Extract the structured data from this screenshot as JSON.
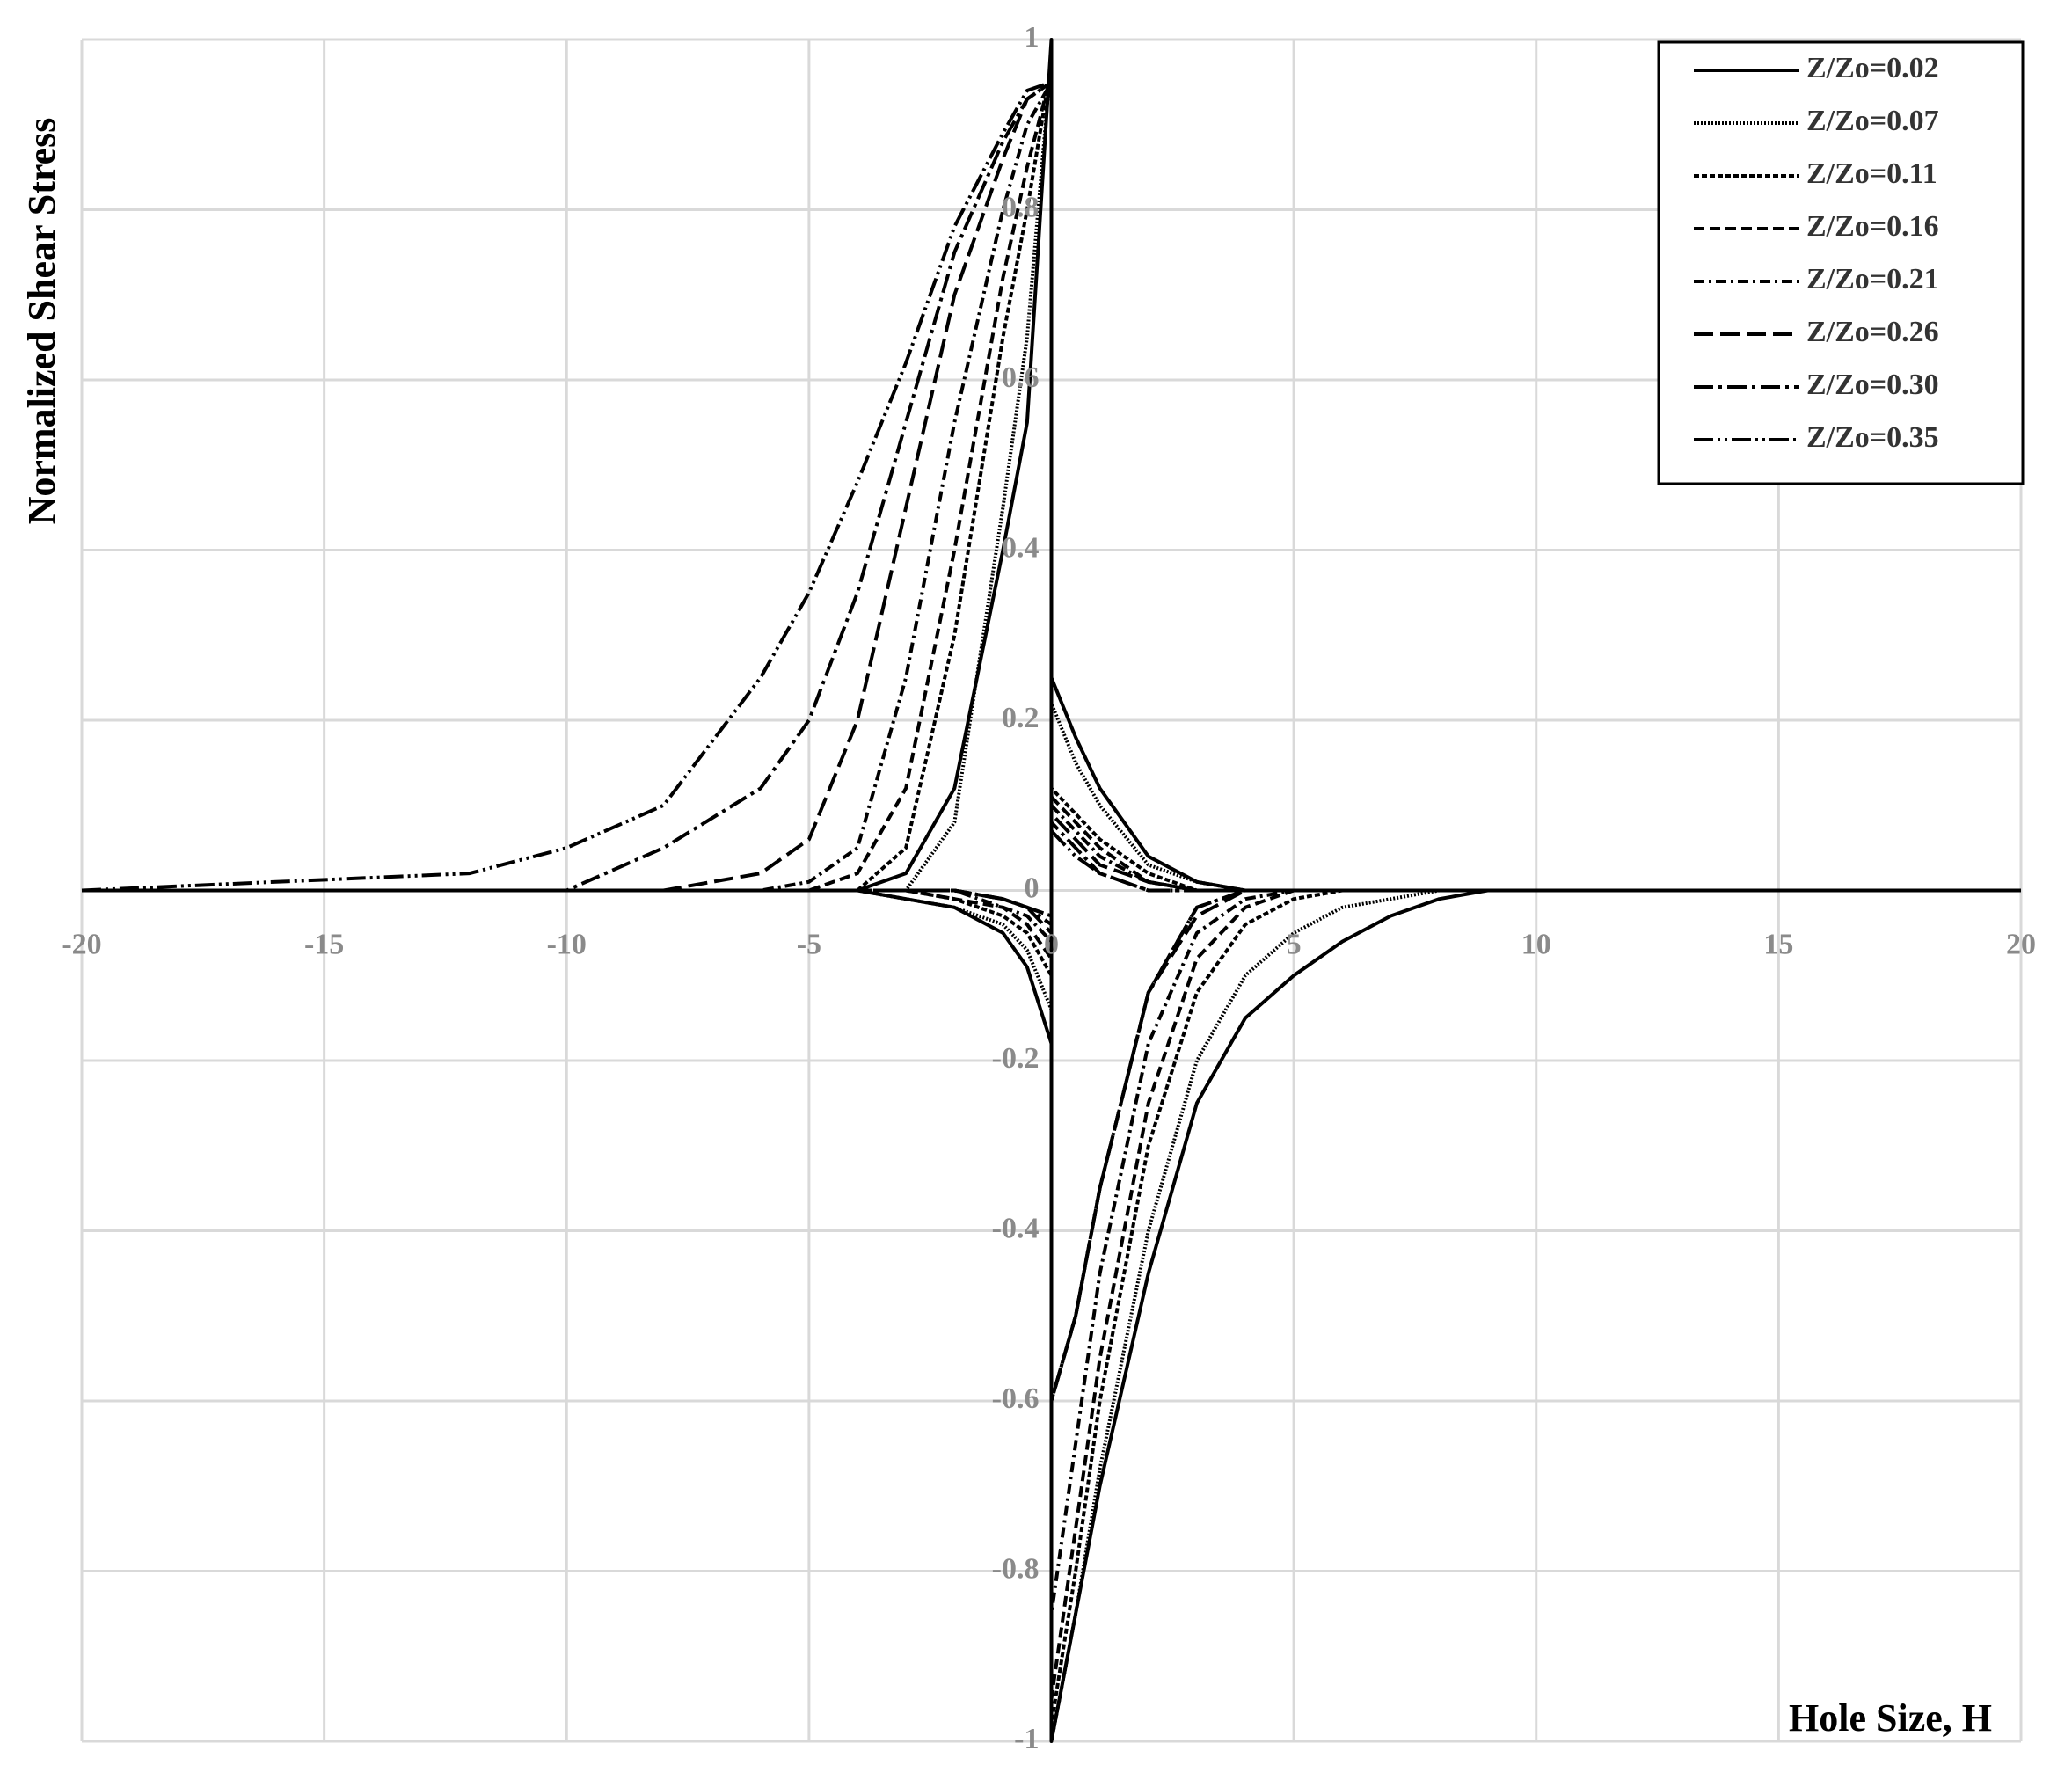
{
  "chart_data": {
    "type": "line",
    "xlabel": "Hole Size, H",
    "ylabel": "Normalized Shear Stress",
    "x": [
      -20,
      -12,
      -10,
      -8,
      -6,
      -5,
      -4,
      -3,
      -2,
      -1,
      -0.5,
      0,
      0,
      0.5,
      1,
      2,
      3,
      4,
      5,
      6,
      7,
      8,
      9,
      20
    ],
    "series": [
      {
        "name": "Z/Zo=0.02",
        "color": "#000000",
        "dash": "none",
        "values": [
          0,
          0,
          0,
          0,
          0,
          0,
          0,
          0.02,
          0.12,
          0.4,
          0.55,
          1,
          -1,
          -0.85,
          -0.7,
          -0.45,
          -0.25,
          -0.15,
          -0.1,
          -0.06,
          -0.03,
          -0.01,
          0,
          0
        ],
        "values2": [
          0,
          0,
          0,
          0,
          0,
          0,
          0,
          -0.01,
          -0.02,
          -0.05,
          -0.09,
          -0.18,
          0.25,
          0.18,
          0.12,
          0.04,
          0.01,
          0,
          0,
          0,
          0,
          0,
          0,
          0
        ]
      },
      {
        "name": "Z/Zo=0.07",
        "color": "#000000",
        "dash": "2 2",
        "values": [
          0,
          0,
          0,
          0,
          0,
          0,
          0,
          0,
          0.08,
          0.45,
          0.65,
          0.98,
          -1,
          -0.85,
          -0.68,
          -0.4,
          -0.2,
          -0.1,
          -0.05,
          -0.02,
          -0.01,
          0,
          0,
          0
        ],
        "values2": [
          0,
          0,
          0,
          0,
          0,
          0,
          0,
          -0.01,
          -0.02,
          -0.04,
          -0.07,
          -0.14,
          0.22,
          0.15,
          0.1,
          0.03,
          0.01,
          0,
          0,
          0,
          0,
          0,
          0,
          0
        ]
      },
      {
        "name": "Z/Zo=0.11",
        "color": "#000000",
        "dash": "6 3",
        "values": [
          0,
          0,
          0,
          0,
          0,
          0,
          0,
          0.05,
          0.3,
          0.65,
          0.8,
          0.97,
          -0.98,
          -0.8,
          -0.6,
          -0.3,
          -0.12,
          -0.04,
          -0.01,
          0,
          0,
          0,
          0,
          0
        ],
        "values2": [
          0,
          0,
          0,
          0,
          0,
          0,
          0,
          0,
          -0.01,
          -0.03,
          -0.05,
          -0.1,
          0.12,
          0.09,
          0.06,
          0.02,
          0,
          0,
          0,
          0,
          0,
          0,
          0,
          0
        ]
      },
      {
        "name": "Z/Zo=0.16",
        "color": "#000000",
        "dash": "12 6",
        "values": [
          0,
          0,
          0,
          0,
          0,
          0,
          0.02,
          0.12,
          0.4,
          0.72,
          0.85,
          0.96,
          -0.95,
          -0.75,
          -0.55,
          -0.25,
          -0.08,
          -0.02,
          0,
          0,
          0,
          0,
          0,
          0
        ],
        "values2": [
          0,
          0,
          0,
          0,
          0,
          0,
          0,
          0,
          -0.01,
          -0.02,
          -0.04,
          -0.08,
          0.11,
          0.08,
          0.05,
          0.01,
          0,
          0,
          0,
          0,
          0,
          0,
          0,
          0
        ]
      },
      {
        "name": "Z/Zo=0.21",
        "color": "#000000",
        "dash": "12 5 3 5",
        "values": [
          0,
          0,
          0,
          0,
          0,
          0.01,
          0.05,
          0.25,
          0.55,
          0.8,
          0.9,
          0.95,
          -0.85,
          -0.65,
          -0.45,
          -0.18,
          -0.05,
          -0.01,
          0,
          0,
          0,
          0,
          0,
          0
        ],
        "values2": [
          0,
          0,
          0,
          0,
          0,
          0,
          0,
          0,
          0,
          -0.02,
          -0.03,
          -0.06,
          0.1,
          0.07,
          0.04,
          0.01,
          0,
          0,
          0,
          0,
          0,
          0,
          0,
          0
        ]
      },
      {
        "name": "Z/Zo=0.26",
        "color": "#000000",
        "dash": "22 8",
        "values": [
          0,
          0,
          0,
          0,
          0.02,
          0.06,
          0.2,
          0.45,
          0.7,
          0.86,
          0.93,
          0.95,
          -0.6,
          -0.5,
          -0.35,
          -0.12,
          -0.03,
          0,
          0,
          0,
          0,
          0,
          0,
          0
        ],
        "values2": [
          0,
          0,
          0,
          0,
          0,
          0,
          0,
          0,
          0,
          -0.01,
          -0.02,
          -0.05,
          0.09,
          0.06,
          0.03,
          0.01,
          0,
          0,
          0,
          0,
          0,
          0,
          0,
          0
        ]
      },
      {
        "name": "Z/Zo=0.30",
        "color": "#000000",
        "dash": "22 6 4 6",
        "values": [
          0,
          0,
          0,
          0.05,
          0.12,
          0.2,
          0.35,
          0.55,
          0.75,
          0.88,
          0.93,
          0.95,
          -0.6,
          -0.5,
          -0.35,
          -0.12,
          -0.02,
          0,
          0,
          0,
          0,
          0,
          0,
          0
        ],
        "values2": [
          0,
          0,
          0,
          0,
          0,
          0,
          0,
          0,
          0,
          -0.01,
          -0.02,
          -0.04,
          0.08,
          0.05,
          0.02,
          0,
          0,
          0,
          0,
          0,
          0,
          0,
          0,
          0
        ]
      },
      {
        "name": "Z/Zo=0.35",
        "color": "#000000",
        "dash": "22 5 3 5 3 5",
        "values": [
          0,
          0.02,
          0.05,
          0.1,
          0.25,
          0.35,
          0.48,
          0.62,
          0.78,
          0.89,
          0.94,
          0.95,
          -0.6,
          -0.5,
          -0.35,
          -0.12,
          -0.02,
          0,
          0,
          0,
          0,
          0,
          0,
          0
        ],
        "values2": [
          0,
          0,
          0,
          0,
          0,
          0,
          0,
          0,
          0,
          -0.01,
          -0.02,
          -0.03,
          0.07,
          0.04,
          0.02,
          0,
          0,
          0,
          0,
          0,
          0,
          0,
          0,
          0
        ]
      }
    ],
    "xlim": [
      -20,
      20
    ],
    "xticks": [
      -20,
      -15,
      -10,
      -5,
      0,
      5,
      10,
      15,
      20
    ],
    "ylim": [
      -1,
      1
    ],
    "yticks": [
      -1,
      -0.8,
      -0.6,
      -0.4,
      -0.2,
      0,
      0.2,
      0.4,
      0.6,
      0.8,
      1
    ],
    "grid": true,
    "legend": "upper right"
  }
}
